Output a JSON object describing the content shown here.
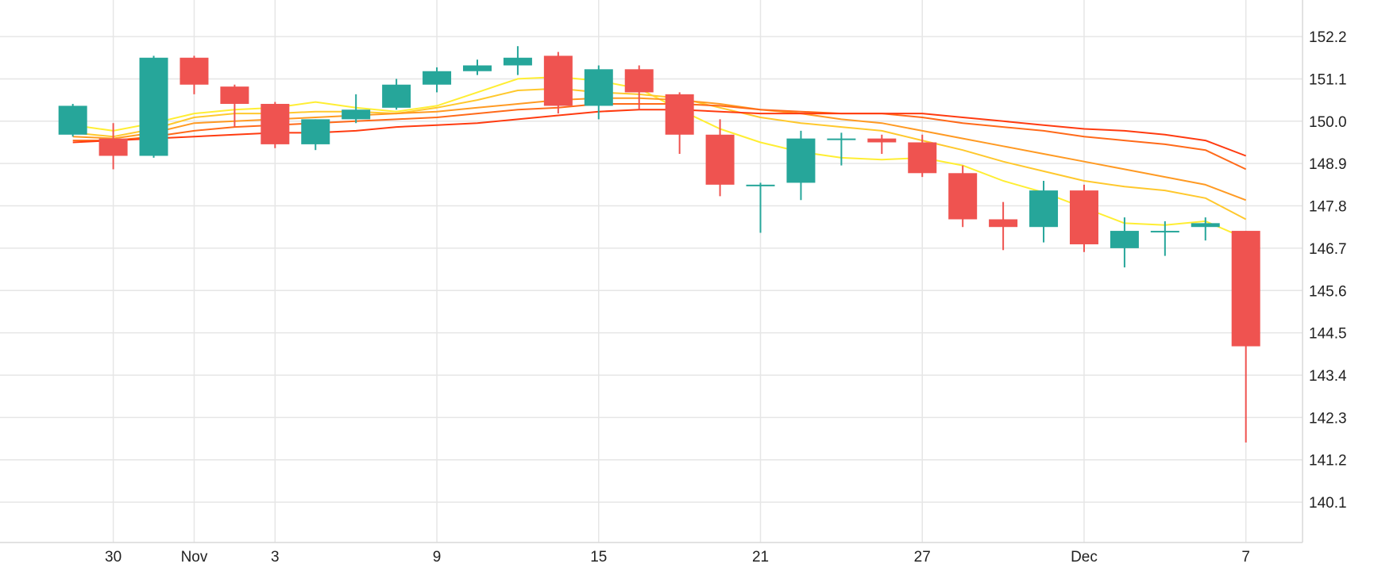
{
  "colors": {
    "up": "#26a69a",
    "down": "#ef5350",
    "grid": "#e6e6e6",
    "ma_colors": [
      "#ffee33",
      "#ffc82d",
      "#ff9a23",
      "#ff6a1a",
      "#ff3b10"
    ]
  },
  "chart_data": {
    "type": "candlestick",
    "grid": true,
    "y_axis_position": "right",
    "ylim": [
      139.05,
      153.15
    ],
    "xlim": [
      -1.8,
      30.4
    ],
    "y_ticks": [
      152.2,
      151.1,
      150.0,
      148.9,
      147.8,
      146.7,
      145.6,
      144.5,
      143.4,
      142.3,
      141.2,
      140.1
    ],
    "x_ticks": [
      {
        "pos": 1,
        "label": "30"
      },
      {
        "pos": 3,
        "label": "Nov"
      },
      {
        "pos": 5,
        "label": "3"
      },
      {
        "pos": 9,
        "label": "9"
      },
      {
        "pos": 13,
        "label": "15"
      },
      {
        "pos": 17,
        "label": "21"
      },
      {
        "pos": 21,
        "label": "27"
      },
      {
        "pos": 25,
        "label": "Dec"
      },
      {
        "pos": 29,
        "label": "7"
      }
    ],
    "candles": [
      {
        "x": 0,
        "open": 149.65,
        "high": 150.45,
        "low": 149.6,
        "close": 150.4
      },
      {
        "x": 1,
        "open": 149.55,
        "high": 149.95,
        "low": 148.75,
        "close": 149.1
      },
      {
        "x": 2,
        "open": 149.1,
        "high": 151.7,
        "low": 149.05,
        "close": 151.65
      },
      {
        "x": 3,
        "open": 151.65,
        "high": 151.7,
        "low": 150.7,
        "close": 150.95
      },
      {
        "x": 4,
        "open": 150.9,
        "high": 150.95,
        "low": 149.85,
        "close": 150.45
      },
      {
        "x": 5,
        "open": 150.45,
        "high": 150.5,
        "low": 149.3,
        "close": 149.4
      },
      {
        "x": 6,
        "open": 149.4,
        "high": 150.05,
        "low": 149.25,
        "close": 150.05
      },
      {
        "x": 7,
        "open": 150.05,
        "high": 150.7,
        "low": 149.95,
        "close": 150.3
      },
      {
        "x": 8,
        "open": 150.35,
        "high": 151.1,
        "low": 150.3,
        "close": 150.95
      },
      {
        "x": 9,
        "open": 150.95,
        "high": 151.4,
        "low": 150.75,
        "close": 151.3
      },
      {
        "x": 10,
        "open": 151.3,
        "high": 151.6,
        "low": 151.2,
        "close": 151.45
      },
      {
        "x": 11,
        "open": 151.45,
        "high": 151.95,
        "low": 151.2,
        "close": 151.65
      },
      {
        "x": 12,
        "open": 151.7,
        "high": 151.8,
        "low": 150.2,
        "close": 150.4
      },
      {
        "x": 13,
        "open": 150.4,
        "high": 151.45,
        "low": 150.05,
        "close": 151.35
      },
      {
        "x": 14,
        "open": 151.35,
        "high": 151.45,
        "low": 150.3,
        "close": 150.75
      },
      {
        "x": 15,
        "open": 150.7,
        "high": 150.75,
        "low": 149.15,
        "close": 149.65
      },
      {
        "x": 16,
        "open": 149.65,
        "high": 150.05,
        "low": 148.05,
        "close": 148.35
      },
      {
        "x": 17,
        "open": 148.35,
        "high": 148.4,
        "low": 147.1,
        "close": 148.35
      },
      {
        "x": 18,
        "open": 148.4,
        "high": 149.75,
        "low": 147.95,
        "close": 149.55
      },
      {
        "x": 19,
        "open": 149.55,
        "high": 149.7,
        "low": 148.85,
        "close": 149.55
      },
      {
        "x": 20,
        "open": 149.55,
        "high": 149.65,
        "low": 149.15,
        "close": 149.45
      },
      {
        "x": 21,
        "open": 149.45,
        "high": 149.65,
        "low": 148.55,
        "close": 148.65
      },
      {
        "x": 22,
        "open": 148.65,
        "high": 148.85,
        "low": 147.25,
        "close": 147.45
      },
      {
        "x": 23,
        "open": 147.45,
        "high": 147.9,
        "low": 146.65,
        "close": 147.25
      },
      {
        "x": 24,
        "open": 147.25,
        "high": 148.45,
        "low": 146.85,
        "close": 148.2
      },
      {
        "x": 25,
        "open": 148.2,
        "high": 148.35,
        "low": 146.6,
        "close": 146.8
      },
      {
        "x": 26,
        "open": 146.7,
        "high": 147.5,
        "low": 146.2,
        "close": 147.15
      },
      {
        "x": 27,
        "open": 147.15,
        "high": 147.4,
        "low": 146.5,
        "close": 147.15
      },
      {
        "x": 28,
        "open": 147.25,
        "high": 147.5,
        "low": 146.9,
        "close": 147.35
      },
      {
        "x": 29,
        "open": 147.15,
        "high": 147.15,
        "low": 141.65,
        "close": 144.15
      }
    ],
    "moving_averages": [
      {
        "values": [
          149.9,
          149.75,
          149.95,
          150.2,
          150.3,
          150.35,
          150.5,
          150.35,
          150.25,
          150.4,
          150.75,
          151.1,
          151.15,
          151.05,
          150.85,
          150.3,
          149.8,
          149.45,
          149.2,
          149.05,
          149.0,
          149.05,
          148.85,
          148.45,
          148.15,
          147.75,
          147.35,
          147.3,
          147.4,
          146.95
        ]
      },
      {
        "values": [
          149.7,
          149.6,
          149.8,
          150.1,
          150.2,
          150.2,
          150.25,
          150.25,
          150.2,
          150.35,
          150.55,
          150.8,
          150.85,
          150.75,
          150.7,
          150.6,
          150.35,
          150.1,
          149.95,
          149.85,
          149.75,
          149.5,
          149.25,
          148.95,
          148.7,
          148.45,
          148.3,
          148.2,
          148.0,
          147.45
        ]
      },
      {
        "values": [
          149.6,
          149.55,
          149.7,
          149.95,
          150.0,
          150.05,
          150.1,
          150.15,
          150.2,
          150.25,
          150.35,
          150.45,
          150.55,
          150.6,
          150.6,
          150.55,
          150.45,
          150.3,
          150.2,
          150.05,
          149.95,
          149.75,
          149.55,
          149.35,
          149.15,
          148.95,
          148.75,
          148.55,
          148.35,
          147.95
        ]
      },
      {
        "values": [
          149.5,
          149.5,
          149.6,
          149.75,
          149.85,
          149.9,
          149.95,
          150.0,
          150.05,
          150.1,
          150.2,
          150.3,
          150.35,
          150.45,
          150.45,
          150.45,
          150.4,
          150.3,
          150.25,
          150.2,
          150.2,
          150.1,
          149.95,
          149.85,
          149.75,
          149.6,
          149.5,
          149.4,
          149.25,
          148.75
        ]
      },
      {
        "values": [
          149.45,
          149.5,
          149.55,
          149.6,
          149.65,
          149.7,
          149.7,
          149.75,
          149.85,
          149.9,
          149.95,
          150.05,
          150.15,
          150.25,
          150.3,
          150.3,
          150.25,
          150.2,
          150.2,
          150.2,
          150.2,
          150.2,
          150.1,
          150.0,
          149.9,
          149.8,
          149.75,
          149.65,
          149.5,
          149.1
        ]
      }
    ]
  }
}
